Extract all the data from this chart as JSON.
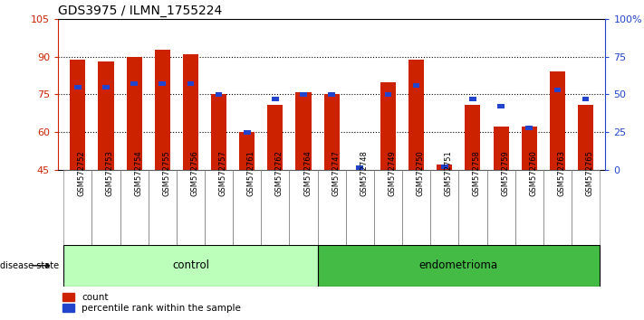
{
  "title": "GDS3975 / ILMN_1755224",
  "samples": [
    "GSM572752",
    "GSM572753",
    "GSM572754",
    "GSM572755",
    "GSM572756",
    "GSM572757",
    "GSM572761",
    "GSM572762",
    "GSM572764",
    "GSM572747",
    "GSM572748",
    "GSM572749",
    "GSM572750",
    "GSM572751",
    "GSM572758",
    "GSM572759",
    "GSM572760",
    "GSM572763",
    "GSM572765"
  ],
  "count_values": [
    89,
    88,
    90,
    93,
    91,
    75,
    60,
    71,
    76,
    75,
    45,
    80,
    89,
    47,
    71,
    62,
    62,
    84,
    71
  ],
  "percentile_values": [
    55,
    55,
    57,
    57,
    57,
    50,
    25,
    47,
    50,
    50,
    1,
    50,
    56,
    2,
    47,
    42,
    28,
    53,
    47
  ],
  "control_count": 9,
  "endometrioma_count": 10,
  "ylim_left": [
    45,
    105
  ],
  "ylim_right": [
    0,
    100
  ],
  "yticks_left": [
    45,
    60,
    75,
    90,
    105
  ],
  "yticks_right": [
    0,
    25,
    50,
    75,
    100
  ],
  "ytick_labels_right": [
    "0",
    "25",
    "50",
    "75",
    "100%"
  ],
  "bar_color_red": "#cc2200",
  "bar_color_blue": "#2244cc",
  "bg_color_plot": "#ffffff",
  "bg_color_samples": "#d0d0d0",
  "control_color_light": "#bbffbb",
  "control_color_dark": "#66cc66",
  "endometrioma_color": "#44bb44",
  "bar_width": 0.55
}
